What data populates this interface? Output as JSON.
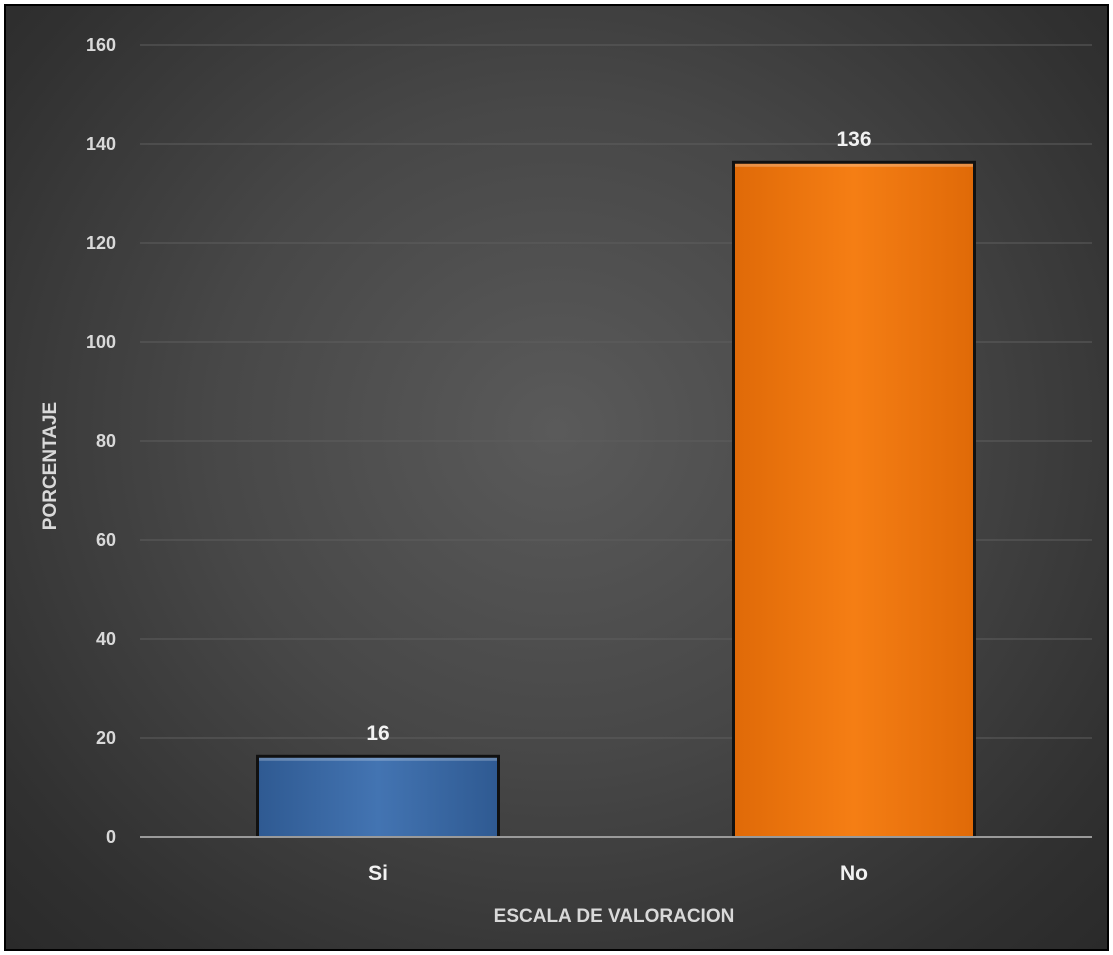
{
  "chart_data": {
    "type": "bar",
    "title": "",
    "categories": [
      "Si",
      "No"
    ],
    "values": [
      16,
      136
    ],
    "data_labels": [
      "16",
      "136"
    ],
    "xlabel": "ESCALA DE VALORACION",
    "ylabel": "PORCENTAJE",
    "ylim": [
      0,
      160
    ],
    "yticks": [
      0,
      20,
      40,
      60,
      80,
      100,
      120,
      140,
      160
    ],
    "ytick_labels": [
      "0",
      "20",
      "40",
      "60",
      "80",
      "100",
      "120",
      "140",
      "160"
    ],
    "grid": true,
    "legend": "none",
    "bar_colors": [
      "#3a6aa6",
      "#f07810"
    ],
    "background_color": "#3d3d3d"
  }
}
